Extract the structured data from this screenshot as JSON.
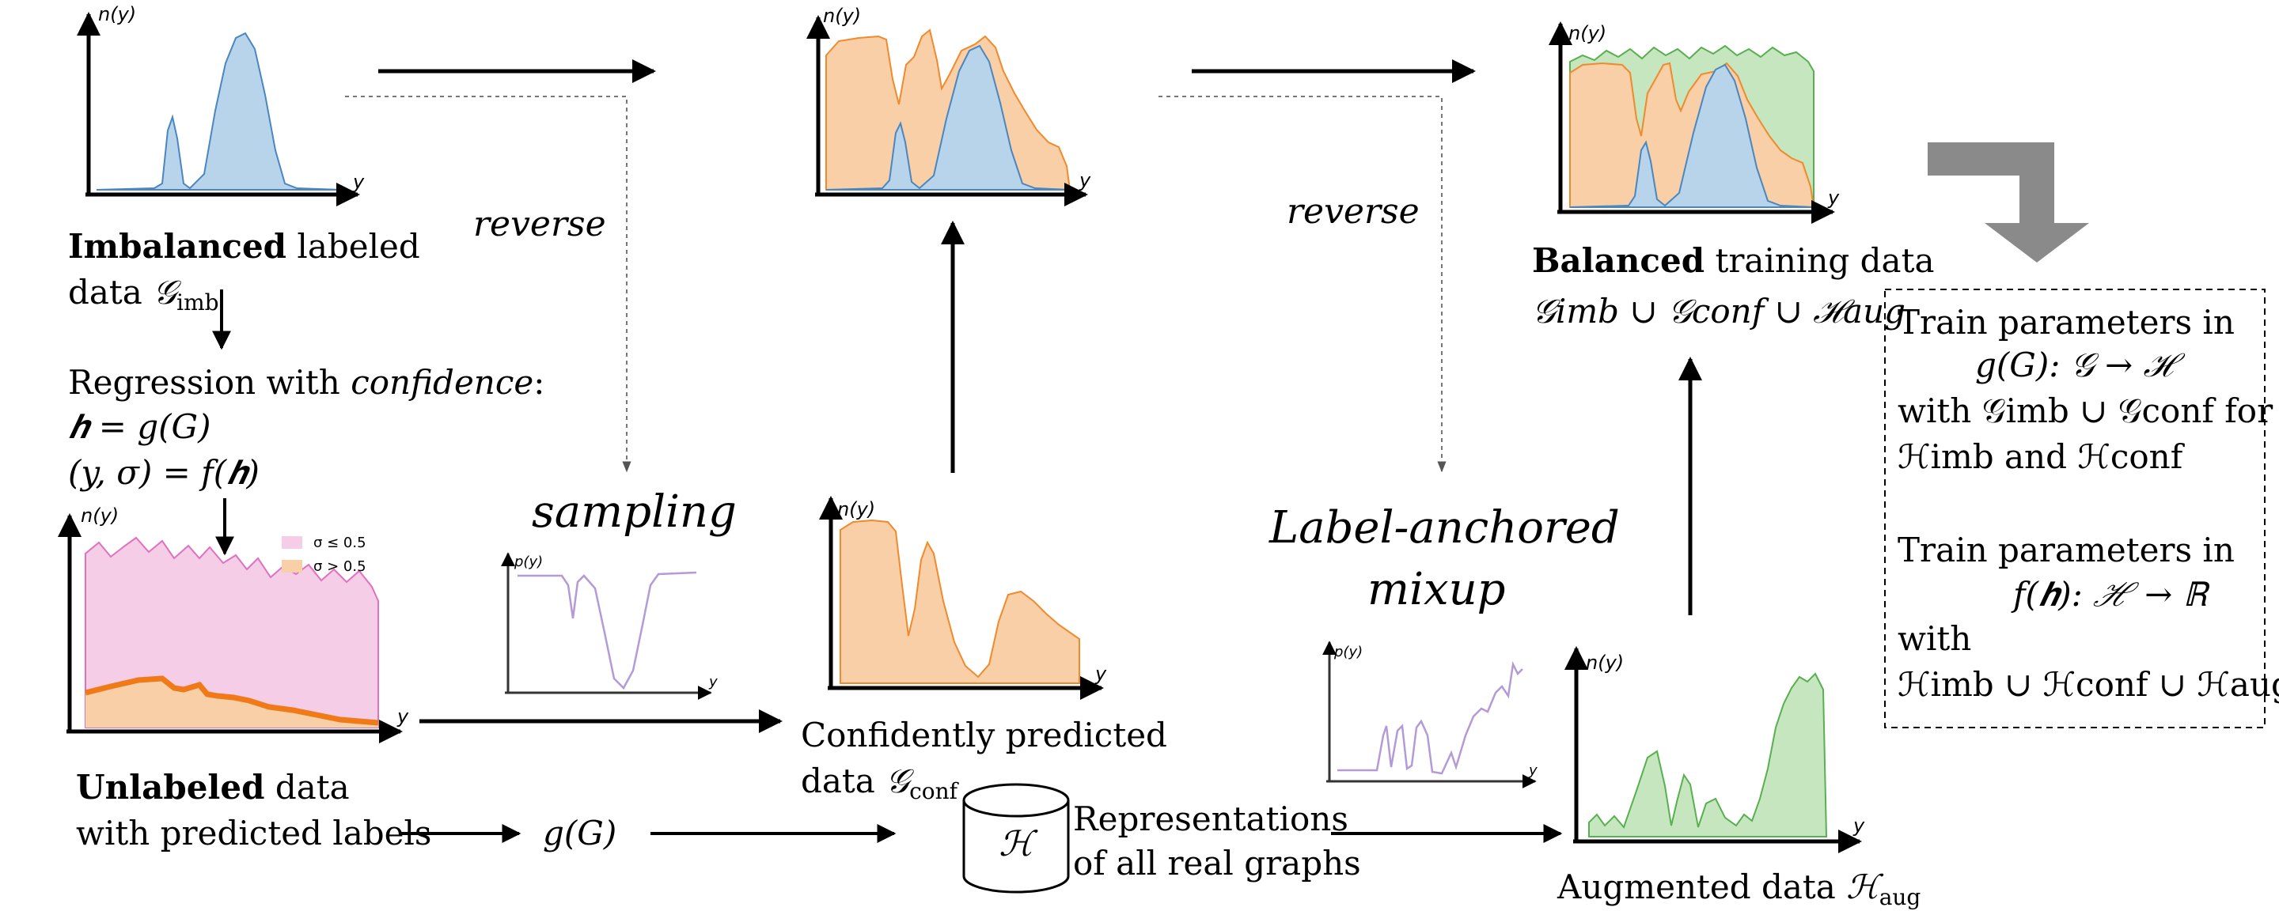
{
  "colors": {
    "blue_fill": "#b8d4ea",
    "blue_line": "#4a86c0",
    "orange_fill": "#f8cfa6",
    "orange_line": "#f08a2c",
    "green_fill": "#c6e6c0",
    "green_line": "#58b050",
    "pink_fill": "#f5cde6",
    "pink_line": "#e070c0",
    "purple_line": "#b49ad6",
    "grey_arrow": "#8a8a8a"
  },
  "axis": {
    "ny": "n(y)",
    "py": "p(y)",
    "y": "y"
  },
  "imbalanced": {
    "bold": "Imbalanced",
    "rest": " labeled",
    "line2": "data ",
    "sym": "𝒢",
    "sub": "imb"
  },
  "regression": {
    "line1": "Regression with ",
    "line1_it": "confidence",
    "line1_end": ":",
    "line2": "𝒉 = g(G)",
    "line3": "(y, σ) = f(𝒉)"
  },
  "legend": {
    "low": "σ ≤ 0.5",
    "high": "σ > 0.5"
  },
  "unlabeled": {
    "bold": "Unlabeled",
    "rest": " data",
    "line2": "with predicted labels"
  },
  "g_of_G": "g(G)",
  "reverse_1": "reverse",
  "reverse_2": "reverse",
  "sampling": "sampling",
  "confident": {
    "line1": "Confidently predicted",
    "line2": "data ",
    "sym": "𝒢",
    "sub": "conf"
  },
  "cylinder_label": "ℋ",
  "representations": {
    "line1": "Representations",
    "line2": "of all real graphs"
  },
  "mixup": {
    "line1": "Label-anchored",
    "line2": "mixup"
  },
  "augmented": {
    "text": "Augmented data ",
    "sym": "ℋ",
    "sub": "aug"
  },
  "balanced": {
    "bold": "Balanced",
    "rest": " training data",
    "line2": "𝒢imb ∪ 𝒢conf ∪ ℋaug"
  },
  "box": {
    "l1": "Train parameters in",
    "l2": "g(G): 𝒢 → ℋ",
    "l3": "with 𝒢imb ∪ 𝒢conf for",
    "l4": "ℋimb and ℋconf",
    "l5": "Train parameters in",
    "l6": "f(𝒉): ℋ → ℝ",
    "l7": "with",
    "l8": "ℋimb ∪ ℋconf ∪ ℋaug"
  }
}
